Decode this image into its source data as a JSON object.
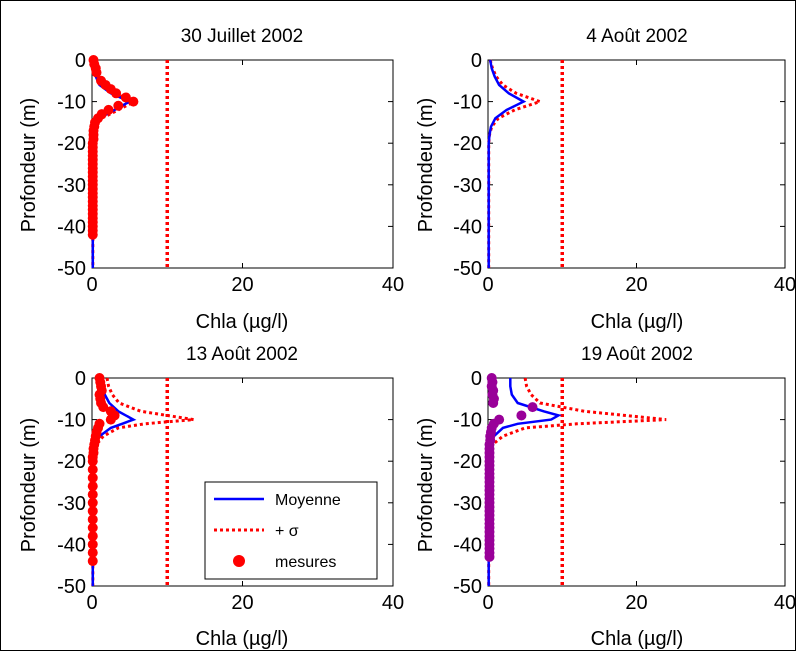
{
  "chart_data": [
    {
      "type": "line",
      "title": "30 Juillet 2002",
      "xlabel": "Chla (µg/l)",
      "ylabel": "Profondeur (m)",
      "xlim": [
        0,
        40
      ],
      "ylim": [
        -50,
        0
      ],
      "xticks": [
        "0",
        "20",
        "40"
      ],
      "yticks": [
        "0",
        "-10",
        "-20",
        "-30",
        "-40",
        "-50"
      ],
      "threshold_x": 10,
      "series": [
        {
          "kind": "mean",
          "color": "#0000ff",
          "points": [
            [
              0.1,
              0
            ],
            [
              0.2,
              -2
            ],
            [
              0.5,
              -4
            ],
            [
              1,
              -6
            ],
            [
              2.5,
              -8
            ],
            [
              5,
              -10
            ],
            [
              3,
              -12
            ],
            [
              1,
              -14
            ],
            [
              0.3,
              -16
            ],
            [
              0.1,
              -18
            ],
            [
              0.1,
              -25
            ],
            [
              0.1,
              -35
            ],
            [
              0.1,
              -45
            ],
            [
              0.1,
              -50
            ]
          ]
        },
        {
          "kind": "plus_sigma",
          "color": "#ff0000",
          "points": [
            [
              0.1,
              0
            ],
            [
              0.3,
              -2
            ],
            [
              0.7,
              -4
            ],
            [
              1.4,
              -6
            ],
            [
              3,
              -8
            ],
            [
              5.6,
              -10
            ],
            [
              3.5,
              -12
            ],
            [
              1.3,
              -14
            ],
            [
              0.4,
              -16
            ],
            [
              0.1,
              -18
            ],
            [
              0.1,
              -30
            ],
            [
              0.1,
              -50
            ]
          ]
        },
        {
          "kind": "measures",
          "color": "#ff0000",
          "points": [
            [
              0.2,
              0
            ],
            [
              0.3,
              -1
            ],
            [
              0.5,
              -2
            ],
            [
              0.6,
              -3
            ],
            [
              1.2,
              -5
            ],
            [
              1.8,
              -6
            ],
            [
              2.5,
              -7
            ],
            [
              3.2,
              -8
            ],
            [
              4.5,
              -9
            ],
            [
              5.5,
              -10
            ],
            [
              3.5,
              -11
            ],
            [
              2.2,
              -12
            ],
            [
              1.3,
              -13
            ],
            [
              0.8,
              -14
            ],
            [
              0.4,
              -15
            ],
            [
              0.3,
              -16
            ],
            [
              0.2,
              -17
            ],
            [
              0.2,
              -18
            ],
            [
              0.2,
              -19
            ],
            [
              0.1,
              -20
            ],
            [
              0.1,
              -21
            ],
            [
              0.1,
              -22
            ],
            [
              0.1,
              -23
            ],
            [
              0.1,
              -24
            ],
            [
              0.1,
              -25
            ],
            [
              0.1,
              -26
            ],
            [
              0.1,
              -27
            ],
            [
              0.1,
              -28
            ],
            [
              0.1,
              -29
            ],
            [
              0.1,
              -30
            ],
            [
              0.1,
              -31
            ],
            [
              0.1,
              -32
            ],
            [
              0.1,
              -33
            ],
            [
              0.1,
              -34
            ],
            [
              0.1,
              -35
            ],
            [
              0.1,
              -36
            ],
            [
              0.1,
              -37
            ],
            [
              0.1,
              -38
            ],
            [
              0.1,
              -39
            ],
            [
              0.1,
              -40
            ],
            [
              0.1,
              -41
            ],
            [
              0.1,
              -42
            ]
          ]
        }
      ]
    },
    {
      "type": "line",
      "title": "4 Août 2002",
      "xlabel": "Chla (µg/l)",
      "ylabel": "Profondeur (m)",
      "xlim": [
        0,
        40
      ],
      "ylim": [
        -50,
        0
      ],
      "xticks": [
        "0",
        "20",
        "40"
      ],
      "yticks": [
        "0",
        "-10",
        "-20",
        "-30",
        "-40",
        "-50"
      ],
      "threshold_x": 10,
      "series": [
        {
          "kind": "mean",
          "color": "#0000ff",
          "points": [
            [
              0.3,
              0
            ],
            [
              0.5,
              -2
            ],
            [
              0.9,
              -4
            ],
            [
              1.5,
              -6
            ],
            [
              2.8,
              -8
            ],
            [
              4.8,
              -10
            ],
            [
              2.5,
              -12
            ],
            [
              1,
              -14
            ],
            [
              0.4,
              -16
            ],
            [
              0.2,
              -18
            ],
            [
              0.1,
              -20
            ],
            [
              0.1,
              -50
            ]
          ]
        },
        {
          "kind": "plus_sigma",
          "color": "#ff0000",
          "points": [
            [
              0.3,
              0
            ],
            [
              0.6,
              -2
            ],
            [
              1.1,
              -4
            ],
            [
              2,
              -6
            ],
            [
              3.8,
              -8
            ],
            [
              7,
              -10
            ],
            [
              3.6,
              -12
            ],
            [
              1.4,
              -14
            ],
            [
              0.5,
              -16
            ],
            [
              0.2,
              -18
            ],
            [
              0.1,
              -20
            ],
            [
              0.1,
              -50
            ]
          ]
        }
      ]
    },
    {
      "type": "line",
      "title": "13 Août 2002",
      "xlabel": "Chla (µg/l)",
      "ylabel": "Profondeur (m)",
      "xlim": [
        0,
        40
      ],
      "ylim": [
        -50,
        0
      ],
      "xticks": [
        "0",
        "20",
        "40"
      ],
      "yticks": [
        "0",
        "-10",
        "-20",
        "-30",
        "-40",
        "-50"
      ],
      "threshold_x": 10,
      "legend": {
        "placement": "bottom-right",
        "entries": [
          "Moyenne",
          "+ σ",
          "mesures"
        ]
      },
      "series": [
        {
          "kind": "mean",
          "color": "#0000ff",
          "points": [
            [
              1.2,
              0
            ],
            [
              1.4,
              -2
            ],
            [
              1.7,
              -4
            ],
            [
              2.3,
              -6
            ],
            [
              3.5,
              -8
            ],
            [
              5.5,
              -10
            ],
            [
              4,
              -11
            ],
            [
              2.5,
              -12
            ],
            [
              1,
              -14
            ],
            [
              0.4,
              -16
            ],
            [
              0.2,
              -18
            ],
            [
              0.1,
              -20
            ],
            [
              0.1,
              -50
            ]
          ]
        },
        {
          "kind": "plus_sigma",
          "color": "#ff0000",
          "points": [
            [
              2,
              0
            ],
            [
              2.2,
              -2
            ],
            [
              2.7,
              -4
            ],
            [
              3.6,
              -6
            ],
            [
              6.5,
              -8
            ],
            [
              13.5,
              -10
            ],
            [
              7,
              -11
            ],
            [
              3.5,
              -12
            ],
            [
              1.5,
              -14
            ],
            [
              0.6,
              -16
            ],
            [
              0.3,
              -18
            ],
            [
              0.1,
              -20
            ],
            [
              0.1,
              -50
            ]
          ]
        },
        {
          "kind": "measures",
          "color": "#ff0000",
          "points": [
            [
              1,
              0
            ],
            [
              1.1,
              -1
            ],
            [
              1.2,
              -2
            ],
            [
              1.3,
              -3
            ],
            [
              1,
              -4
            ],
            [
              1.1,
              -5
            ],
            [
              1.2,
              -6
            ],
            [
              1.5,
              -7
            ],
            [
              2.5,
              -8
            ],
            [
              3,
              -9
            ],
            [
              2.5,
              -10
            ],
            [
              1,
              -11
            ],
            [
              0.8,
              -12
            ],
            [
              0.6,
              -13
            ],
            [
              0.5,
              -14
            ],
            [
              0.4,
              -15
            ],
            [
              0.3,
              -16
            ],
            [
              0.2,
              -17
            ],
            [
              0.2,
              -18
            ],
            [
              0.1,
              -19
            ],
            [
              0.1,
              -20
            ],
            [
              0.1,
              -22
            ],
            [
              0.1,
              -24
            ],
            [
              0.1,
              -26
            ],
            [
              0.1,
              -28
            ],
            [
              0.1,
              -30
            ],
            [
              0.1,
              -32
            ],
            [
              0.1,
              -34
            ],
            [
              0.1,
              -36
            ],
            [
              0.1,
              -38
            ],
            [
              0.1,
              -40
            ],
            [
              0.1,
              -42
            ],
            [
              0.1,
              -44
            ]
          ]
        }
      ]
    },
    {
      "type": "line",
      "title": "19 Août 2002",
      "xlabel": "Chla (µg/l)",
      "ylabel": "Profondeur (m)",
      "xlim": [
        0,
        40
      ],
      "ylim": [
        -50,
        0
      ],
      "xticks": [
        "0",
        "20",
        "40"
      ],
      "yticks": [
        "0",
        "-10",
        "-20",
        "-30",
        "-40",
        "-50"
      ],
      "threshold_x": 10,
      "series": [
        {
          "kind": "mean",
          "color": "#0000ff",
          "points": [
            [
              3,
              0
            ],
            [
              3,
              -2
            ],
            [
              3.2,
              -4
            ],
            [
              4,
              -6
            ],
            [
              7.5,
              -8
            ],
            [
              9.5,
              -9
            ],
            [
              8.5,
              -10
            ],
            [
              4,
              -11
            ],
            [
              2,
              -12
            ],
            [
              0.8,
              -14
            ],
            [
              0.3,
              -16
            ],
            [
              0.1,
              -18
            ],
            [
              0.1,
              -50
            ]
          ]
        },
        {
          "kind": "plus_sigma",
          "color": "#ff0000",
          "points": [
            [
              5,
              0
            ],
            [
              5.2,
              -2
            ],
            [
              5.8,
              -4
            ],
            [
              7,
              -6
            ],
            [
              13,
              -8
            ],
            [
              24,
              -10
            ],
            [
              12,
              -11
            ],
            [
              5,
              -12
            ],
            [
              2,
              -14
            ],
            [
              0.6,
              -16
            ],
            [
              0.2,
              -18
            ],
            [
              0.1,
              -20
            ],
            [
              0.1,
              -50
            ]
          ]
        },
        {
          "kind": "measures",
          "color": "#990099",
          "points": [
            [
              0.5,
              0
            ],
            [
              0.6,
              -1
            ],
            [
              0.5,
              -2
            ],
            [
              0.7,
              -3
            ],
            [
              0.6,
              -4
            ],
            [
              0.8,
              -5
            ],
            [
              0.7,
              -6
            ],
            [
              6,
              -7
            ],
            [
              4.5,
              -9
            ],
            [
              1.5,
              -10
            ],
            [
              0.8,
              -11
            ],
            [
              0.5,
              -12
            ],
            [
              0.4,
              -13
            ],
            [
              0.3,
              -14
            ],
            [
              0.3,
              -15
            ],
            [
              0.2,
              -16
            ],
            [
              0.2,
              -17
            ],
            [
              0.2,
              -18
            ],
            [
              0.2,
              -19
            ],
            [
              0.2,
              -20
            ],
            [
              0.2,
              -21
            ],
            [
              0.2,
              -22
            ],
            [
              0.2,
              -23
            ],
            [
              0.2,
              -24
            ],
            [
              0.2,
              -25
            ],
            [
              0.2,
              -26
            ],
            [
              0.2,
              -27
            ],
            [
              0.2,
              -28
            ],
            [
              0.2,
              -29
            ],
            [
              0.2,
              -30
            ],
            [
              0.2,
              -31
            ],
            [
              0.2,
              -32
            ],
            [
              0.2,
              -33
            ],
            [
              0.2,
              -34
            ],
            [
              0.2,
              -35
            ],
            [
              0.2,
              -36
            ],
            [
              0.2,
              -37
            ],
            [
              0.2,
              -38
            ],
            [
              0.2,
              -39
            ],
            [
              0.2,
              -40
            ],
            [
              0.2,
              -41
            ],
            [
              0.2,
              -42
            ],
            [
              0.2,
              -43
            ]
          ]
        }
      ]
    }
  ]
}
